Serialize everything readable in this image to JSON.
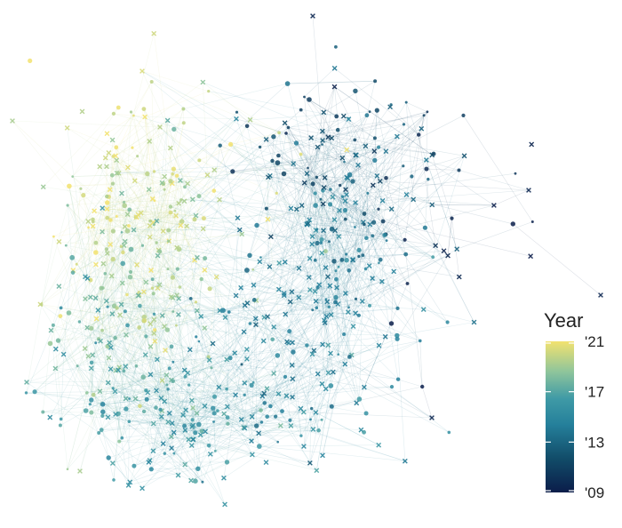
{
  "figure": {
    "type": "network",
    "background": "#ffffff",
    "edge_color": "#9bb3bd",
    "node_shapes": [
      "dot",
      "x-cross"
    ],
    "color_variable": "Year"
  },
  "legend": {
    "title": "Year",
    "ticks": [
      {
        "value": 2021,
        "label": "'21"
      },
      {
        "value": 2017,
        "label": "'17"
      },
      {
        "value": 2013,
        "label": "'13"
      },
      {
        "value": 2009,
        "label": "'09"
      }
    ],
    "range": [
      2009,
      2021
    ],
    "colorscale": [
      "#0b1d4a",
      "#114b68",
      "#25809b",
      "#3f9aa6",
      "#8fc59b",
      "#f2e26f"
    ]
  }
}
